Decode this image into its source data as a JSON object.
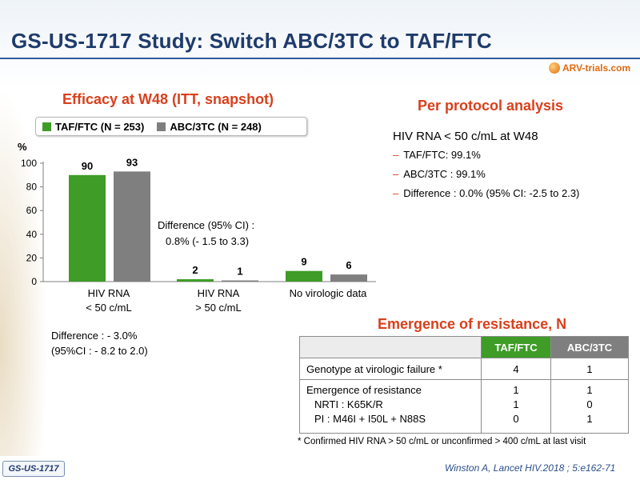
{
  "slide": {
    "title": "GS-US-1717 Study: Switch ABC/3TC to TAF/FTC",
    "logo_text": "ARV-trials.com",
    "study_badge": "GS-US-1717",
    "citation": "Winston A, Lancet HIV.2018 ; 5:e162-71"
  },
  "efficacy": {
    "title": "Efficacy at W48 (ITT, snapshot)",
    "legend": [
      "TAF/FTC (N = 253)",
      "ABC/3TC (N = 248)"
    ],
    "diff_mid_line1": "Difference (95% CI) :",
    "diff_mid_line2": "0.8%  (- 1.5 to 3.3)",
    "diff_bottom_line1": "Difference : - 3.0%",
    "diff_bottom_line2": "(95%CI : - 8.2 to 2.0)",
    "categories": [
      {
        "line1": "HIV RNA",
        "line2": "< 50 c/mL"
      },
      {
        "line1": "HIV RNA",
        "line2": "> 50 c/mL"
      },
      {
        "line1": "No virologic data",
        "line2": ""
      }
    ]
  },
  "chart_data": {
    "type": "bar",
    "categories": [
      "HIV RNA < 50 c/mL",
      "HIV RNA > 50 c/mL",
      "No virologic data"
    ],
    "series": [
      {
        "name": "TAF/FTC (N = 253)",
        "values": [
          90,
          2,
          9
        ],
        "color": "#3e9c27"
      },
      {
        "name": "ABC/3TC (N = 248)",
        "values": [
          93,
          1,
          6
        ],
        "color": "#7f7f7f"
      }
    ],
    "ylabel": "%",
    "ylim": [
      0,
      100
    ],
    "yticks": [
      0,
      20,
      40,
      60,
      80,
      100
    ],
    "grid": false,
    "legend_position": "top"
  },
  "per_protocol": {
    "title": "Per protocol analysis",
    "header": "HIV RNA  < 50 c/mL at W48",
    "items": [
      "TAF/FTC: 99.1%",
      "ABC/3TC : 99.1%",
      "Difference : 0.0% (95% CI: -2.5 to 2.3)"
    ],
    "dash": "–"
  },
  "resistance": {
    "title": "Emergence of resistance, N",
    "col_taf": "TAF/FTC",
    "col_abc": "ABC/3TC",
    "row1_label": "Genotype at virologic failure *",
    "row1_taf": "4",
    "row1_abc": "1",
    "row2_label1": "Emergence of resistance",
    "row2_label2": "NRTI : K65K/R",
    "row2_label3": "PI : M46I + I50L + N88S",
    "row2_taf": [
      "1",
      "1",
      "0"
    ],
    "row2_abc": [
      "1",
      "0",
      "1"
    ],
    "footnote": "* Confirmed HIV RNA > 50 c/mL or unconfirmed  > 400 c/mL at last visit"
  }
}
